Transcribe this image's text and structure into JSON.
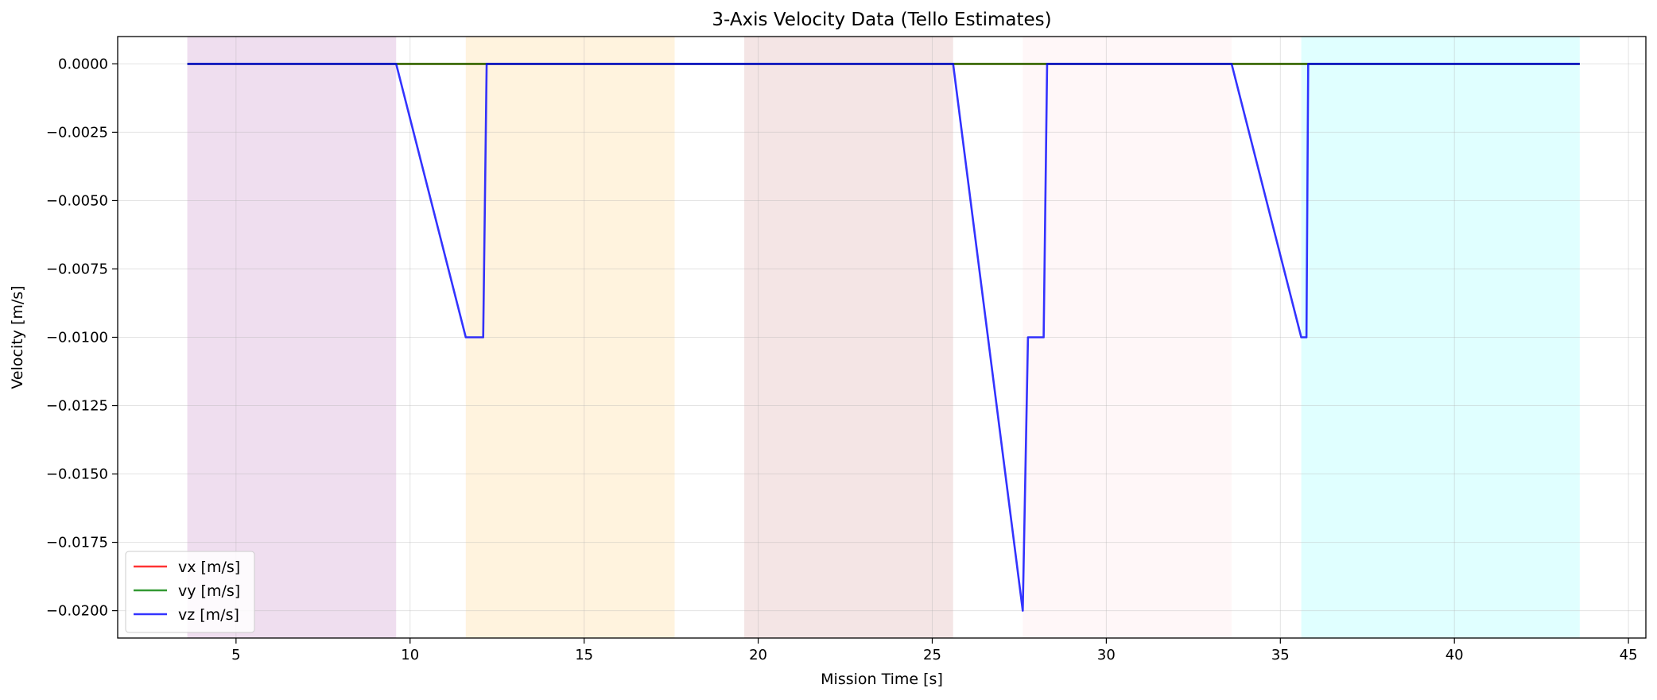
{
  "chart_data": {
    "type": "line",
    "title": "3-Axis Velocity Data (Tello Estimates)",
    "xlabel": "Mission Time [s]",
    "ylabel": "Velocity [m/s]",
    "xlim": [
      1.6,
      45.5
    ],
    "ylim": [
      -0.021,
      0.001
    ],
    "xticks": [
      5,
      10,
      15,
      20,
      25,
      30,
      35,
      40,
      45
    ],
    "xtick_labels": [
      "5",
      "10",
      "15",
      "20",
      "25",
      "30",
      "35",
      "40",
      "45"
    ],
    "yticks": [
      0,
      -0.0025,
      -0.005,
      -0.0075,
      -0.01,
      -0.0125,
      -0.015,
      -0.0175,
      -0.02
    ],
    "ytick_labels": [
      "0.0000",
      "−0.0025",
      "−0.0050",
      "−0.0075",
      "−0.0100",
      "−0.0125",
      "−0.0150",
      "−0.0175",
      "−0.0200"
    ],
    "grid": true,
    "legend_position": "bottom-left",
    "phases": [
      {
        "start": 3.6,
        "end": 9.6,
        "color": "#800080",
        "opacity": 0.13
      },
      {
        "start": 11.6,
        "end": 17.6,
        "color": "#ffa500",
        "opacity": 0.13
      },
      {
        "start": 19.6,
        "end": 25.6,
        "color": "#a52a2a",
        "opacity": 0.12
      },
      {
        "start": 27.6,
        "end": 33.6,
        "color": "#ffc0cb",
        "opacity": 0.13
      },
      {
        "start": 35.6,
        "end": 43.6,
        "color": "#00ffff",
        "opacity": 0.12
      }
    ],
    "series": [
      {
        "name": "vx [m/s]",
        "color": "#ff0000",
        "x": [
          3.6,
          43.6
        ],
        "y": [
          0,
          0
        ]
      },
      {
        "name": "vy [m/s]",
        "color": "#008000",
        "x": [
          3.6,
          43.6
        ],
        "y": [
          0,
          0
        ]
      },
      {
        "name": "vz [m/s]",
        "color": "#0000ff",
        "x": [
          3.6,
          9.6,
          11.6,
          12.1,
          12.2,
          25.6,
          27.6,
          27.75,
          28.2,
          28.3,
          33.6,
          35.6,
          35.75,
          35.8,
          43.6
        ],
        "y": [
          0,
          0,
          -0.01,
          -0.01,
          0,
          0,
          -0.02,
          -0.01,
          -0.01,
          0,
          0,
          -0.01,
          -0.01,
          0,
          0
        ]
      }
    ]
  }
}
